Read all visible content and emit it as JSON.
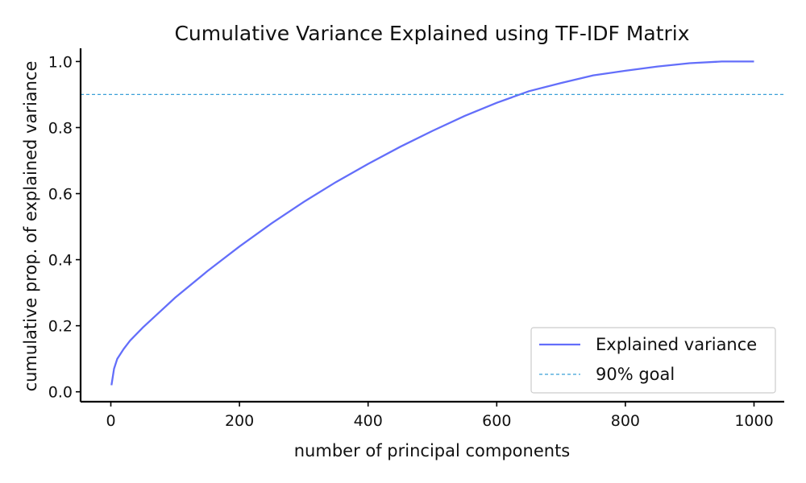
{
  "chart_data": {
    "type": "line",
    "title": "Cumulative Variance Explained using TF-IDF Matrix",
    "xlabel": "number of principal components",
    "ylabel": "cumulative prop. of explained variance",
    "xlim": [
      -47,
      1047
    ],
    "ylim": [
      -0.03,
      1.04
    ],
    "x_ticks": [
      0,
      200,
      400,
      600,
      800,
      1000
    ],
    "x_tick_labels": [
      "0",
      "200",
      "400",
      "600",
      "800",
      "1000"
    ],
    "y_ticks": [
      0.0,
      0.2,
      0.4,
      0.6,
      0.8,
      1.0
    ],
    "y_tick_labels": [
      "0.0",
      "0.2",
      "0.4",
      "0.6",
      "0.8",
      "1.0"
    ],
    "grid": false,
    "legend_position": "bottom-right",
    "series": [
      {
        "name": "Explained variance",
        "color": "#636efa",
        "style": "solid",
        "x": [
          1,
          5,
          10,
          20,
          30,
          50,
          75,
          100,
          150,
          200,
          250,
          300,
          350,
          400,
          450,
          500,
          550,
          600,
          650,
          700,
          750,
          800,
          850,
          900,
          950,
          975,
          1000
        ],
        "y": [
          0.02,
          0.07,
          0.1,
          0.13,
          0.155,
          0.195,
          0.24,
          0.285,
          0.365,
          0.44,
          0.51,
          0.575,
          0.635,
          0.69,
          0.742,
          0.79,
          0.835,
          0.875,
          0.91,
          0.935,
          0.958,
          0.972,
          0.985,
          0.995,
          1.0,
          1.0,
          1.0
        ]
      },
      {
        "name": "90% goal",
        "color": "#3ba0d8",
        "style": "dashed",
        "x": [
          -47,
          1047
        ],
        "y": [
          0.9,
          0.9
        ]
      }
    ]
  }
}
